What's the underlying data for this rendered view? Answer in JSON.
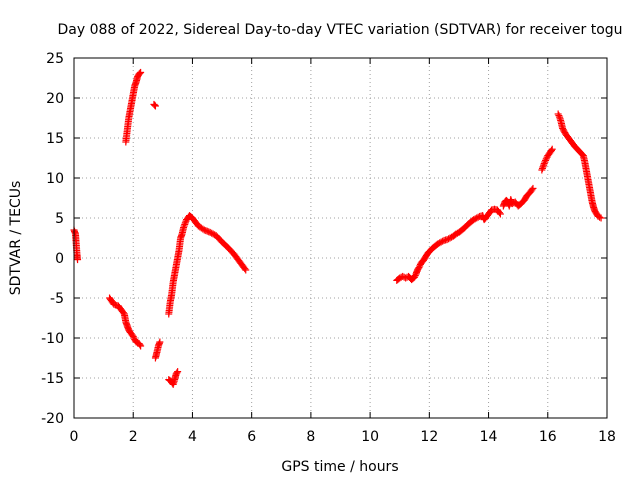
{
  "chart_data": {
    "type": "scatter",
    "title": "Day 088 of 2022, Sidereal Day-to-day VTEC variation (SDTVAR) for receiver togu",
    "xlabel": "GPS time / hours",
    "ylabel": "SDTVAR / TECUs",
    "xlim": [
      0,
      18
    ],
    "ylim": [
      -20,
      25
    ],
    "x_ticks": [
      0,
      2,
      4,
      6,
      8,
      10,
      12,
      14,
      16,
      18
    ],
    "y_ticks": [
      -20,
      -15,
      -10,
      -5,
      0,
      5,
      10,
      15,
      20,
      25
    ],
    "x_tick_labels": [
      "0",
      "2",
      "4",
      "6",
      "8",
      "10",
      "12",
      "14",
      "16",
      "18"
    ],
    "y_tick_labels": [
      "-20",
      "-15",
      "-10",
      "-5",
      "0",
      "5",
      "10",
      "15",
      "20",
      "25"
    ],
    "grid": true,
    "marker": "+",
    "marker_color": "#ff0000",
    "series": [
      {
        "name": "SDTVAR",
        "segments": [
          [
            [
              0.0,
              3.5
            ],
            [
              0.05,
              3.0
            ],
            [
              0.07,
              2.0
            ],
            [
              0.1,
              0.5
            ],
            [
              0.12,
              -0.2
            ]
          ],
          [
            [
              1.2,
              -5.0
            ],
            [
              1.35,
              -5.8
            ],
            [
              1.5,
              -6.0
            ],
            [
              1.6,
              -6.5
            ],
            [
              1.7,
              -7.0
            ],
            [
              1.75,
              -8.0
            ],
            [
              1.8,
              -8.5
            ],
            [
              1.85,
              -9.0
            ],
            [
              1.9,
              -9.3
            ],
            [
              2.0,
              -9.8
            ],
            [
              2.05,
              -10.2
            ],
            [
              2.1,
              -10.5
            ],
            [
              2.2,
              -10.7
            ],
            [
              2.25,
              -11.0
            ]
          ],
          [
            [
              1.75,
              14.5
            ],
            [
              1.8,
              16.0
            ],
            [
              1.85,
              17.5
            ],
            [
              1.9,
              18.5
            ],
            [
              1.95,
              19.5
            ],
            [
              2.0,
              20.5
            ],
            [
              2.05,
              21.5
            ],
            [
              2.1,
              22.0
            ],
            [
              2.15,
              22.7
            ],
            [
              2.2,
              23.0
            ],
            [
              2.25,
              23.2
            ]
          ],
          [
            [
              2.7,
              19.2
            ],
            [
              2.75,
              19.0
            ]
          ],
          [
            [
              2.75,
              -12.5
            ],
            [
              2.8,
              -11.8
            ],
            [
              2.85,
              -11.0
            ],
            [
              2.9,
              -10.5
            ]
          ],
          [
            [
              3.2,
              -15.2
            ],
            [
              3.3,
              -15.5
            ],
            [
              3.35,
              -15.8
            ],
            [
              3.4,
              -15.2
            ],
            [
              3.45,
              -14.5
            ],
            [
              3.5,
              -14.2
            ]
          ],
          [
            [
              3.2,
              -7.0
            ],
            [
              3.25,
              -5.5
            ],
            [
              3.3,
              -4.5
            ],
            [
              3.35,
              -3.0
            ],
            [
              3.4,
              -2.0
            ],
            [
              3.45,
              -1.0
            ],
            [
              3.5,
              0.0
            ],
            [
              3.55,
              1.0
            ],
            [
              3.6,
              2.5
            ],
            [
              3.65,
              3.0
            ],
            [
              3.7,
              3.8
            ],
            [
              3.8,
              4.8
            ],
            [
              3.9,
              5.3
            ],
            [
              4.0,
              5.0
            ],
            [
              4.1,
              4.5
            ],
            [
              4.2,
              4.0
            ],
            [
              4.4,
              3.5
            ],
            [
              4.6,
              3.2
            ],
            [
              4.8,
              2.8
            ],
            [
              5.0,
              2.0
            ],
            [
              5.2,
              1.3
            ],
            [
              5.4,
              0.5
            ],
            [
              5.6,
              -0.5
            ],
            [
              5.8,
              -1.5
            ]
          ],
          [
            [
              10.9,
              -2.8
            ],
            [
              11.0,
              -2.5
            ],
            [
              11.1,
              -2.3
            ],
            [
              11.2,
              -2.5
            ],
            [
              11.3,
              -2.3
            ],
            [
              11.4,
              -2.7
            ],
            [
              11.5,
              -2.4
            ],
            [
              11.55,
              -2.0
            ],
            [
              11.6,
              -1.5
            ],
            [
              11.65,
              -1.2
            ],
            [
              11.7,
              -0.8
            ],
            [
              11.75,
              -0.5
            ],
            [
              11.8,
              -0.3
            ],
            [
              11.85,
              0.0
            ],
            [
              11.9,
              0.3
            ],
            [
              11.95,
              0.6
            ],
            [
              12.0,
              0.8
            ],
            [
              12.1,
              1.2
            ],
            [
              12.2,
              1.5
            ],
            [
              12.3,
              1.8
            ],
            [
              12.4,
              2.0
            ],
            [
              12.5,
              2.2
            ],
            [
              12.6,
              2.3
            ],
            [
              12.7,
              2.5
            ],
            [
              12.8,
              2.7
            ],
            [
              12.9,
              3.0
            ],
            [
              13.0,
              3.2
            ],
            [
              13.1,
              3.5
            ],
            [
              13.2,
              3.8
            ],
            [
              13.3,
              4.2
            ],
            [
              13.4,
              4.5
            ],
            [
              13.5,
              4.8
            ],
            [
              13.6,
              5.0
            ],
            [
              13.7,
              5.2
            ],
            [
              13.8,
              5.3
            ],
            [
              13.85,
              4.8
            ],
            [
              13.9,
              5.0
            ],
            [
              14.0,
              5.5
            ],
            [
              14.1,
              6.0
            ],
            [
              14.2,
              6.1
            ],
            [
              14.3,
              6.0
            ],
            [
              14.4,
              5.5
            ]
          ],
          [
            [
              14.5,
              6.5
            ],
            [
              14.55,
              7.0
            ],
            [
              14.6,
              7.2
            ],
            [
              14.65,
              7.0
            ],
            [
              14.7,
              6.5
            ],
            [
              14.75,
              7.3
            ],
            [
              14.8,
              6.8
            ],
            [
              14.9,
              7.0
            ],
            [
              15.0,
              6.5
            ],
            [
              15.1,
              6.8
            ],
            [
              15.2,
              7.2
            ],
            [
              15.3,
              7.8
            ],
            [
              15.4,
              8.2
            ],
            [
              15.5,
              8.7
            ]
          ],
          [
            [
              15.8,
              11.0
            ],
            [
              15.9,
              12.0
            ],
            [
              16.0,
              12.8
            ],
            [
              16.1,
              13.3
            ],
            [
              16.15,
              13.6
            ]
          ],
          [
            [
              16.35,
              18.0
            ],
            [
              16.4,
              17.6
            ],
            [
              16.45,
              17.0
            ],
            [
              16.5,
              16.2
            ],
            [
              16.6,
              15.5
            ],
            [
              16.7,
              15.0
            ],
            [
              16.8,
              14.5
            ],
            [
              16.9,
              14.0
            ],
            [
              17.0,
              13.6
            ],
            [
              17.1,
              13.2
            ],
            [
              17.2,
              12.8
            ],
            [
              17.25,
              12.0
            ],
            [
              17.3,
              11.0
            ],
            [
              17.35,
              10.0
            ],
            [
              17.4,
              9.0
            ],
            [
              17.45,
              8.0
            ],
            [
              17.5,
              7.0
            ],
            [
              17.55,
              6.3
            ],
            [
              17.6,
              5.8
            ],
            [
              17.7,
              5.2
            ],
            [
              17.8,
              5.0
            ]
          ]
        ]
      }
    ]
  }
}
